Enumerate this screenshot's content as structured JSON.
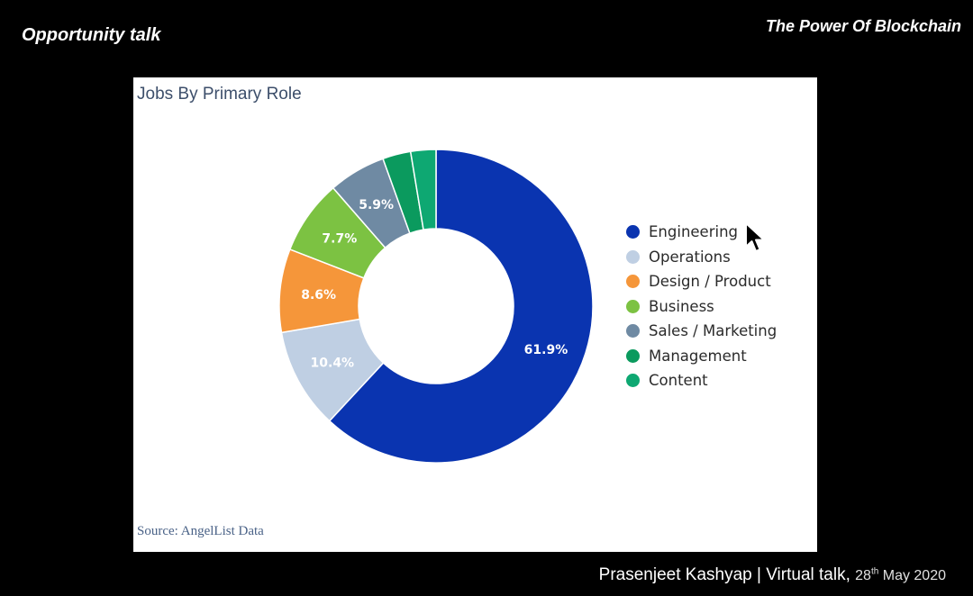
{
  "slide": {
    "title": "Opportunity talk",
    "brand": "The Power Of Blockchain",
    "footer_name": "Prasenjeet Kashyap | Virtual talk,",
    "footer_date_day": "28",
    "footer_date_suffix": "th",
    "footer_date_rest": "May 2020"
  },
  "chart_data": {
    "type": "pie",
    "variant": "donut",
    "title": "Jobs By Primary Role",
    "source": "Source: AngelList Data",
    "legend_position": "right",
    "slices": [
      {
        "label": "Engineering",
        "value": 61.9,
        "display": "61.9%",
        "color": "#0a34b0",
        "label_color": "#ffffff"
      },
      {
        "label": "Operations",
        "value": 10.4,
        "display": "10.4%",
        "color": "#bfcfe3",
        "label_color": "#ffffff"
      },
      {
        "label": "Design / Product",
        "value": 8.6,
        "display": "8.6%",
        "color": "#f5963a",
        "label_color": "#ffffff"
      },
      {
        "label": "Business",
        "value": 7.7,
        "display": "7.7%",
        "color": "#7cc242",
        "label_color": "#ffffff"
      },
      {
        "label": "Sales / Marketing",
        "value": 5.9,
        "display": "5.9%",
        "color": "#6f8aa3",
        "label_color": "#ffffff"
      },
      {
        "label": "Management",
        "value": 2.9,
        "display": "",
        "color": "#0b9a5e",
        "label_color": "#ffffff"
      },
      {
        "label": "Content",
        "value": 2.6,
        "display": "",
        "color": "#0ea872",
        "label_color": "#ffffff"
      }
    ]
  }
}
